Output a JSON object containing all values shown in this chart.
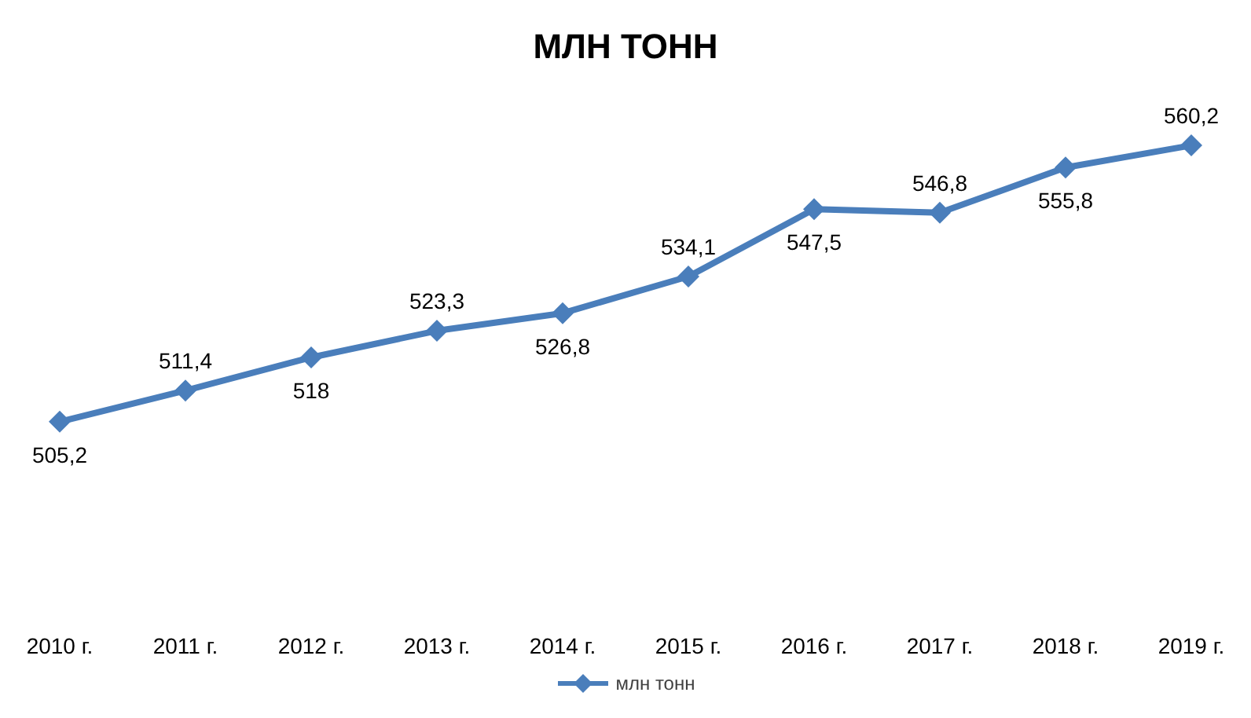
{
  "chart_data": {
    "type": "line",
    "title": "МЛН ТОНН",
    "categories": [
      "2010 г.",
      "2011 г.",
      "2012 г.",
      "2013 г.",
      "2014 г.",
      "2015 г.",
      "2016 г.",
      "2017 г.",
      "2018 г.",
      "2019 г."
    ],
    "series": [
      {
        "name": "млн тонн",
        "color": "#4a7ebb",
        "values": [
          505.2,
          511.4,
          518,
          523.3,
          526.8,
          534.1,
          547.5,
          546.8,
          555.8,
          560.2
        ],
        "value_labels": [
          "505,2",
          "511,4",
          "518",
          "523,3",
          "526,8",
          "534,1",
          "547,5",
          "546,8",
          "555,8",
          "560,2"
        ]
      }
    ],
    "marker": "diamond",
    "legend": "bottom",
    "grid": false
  }
}
